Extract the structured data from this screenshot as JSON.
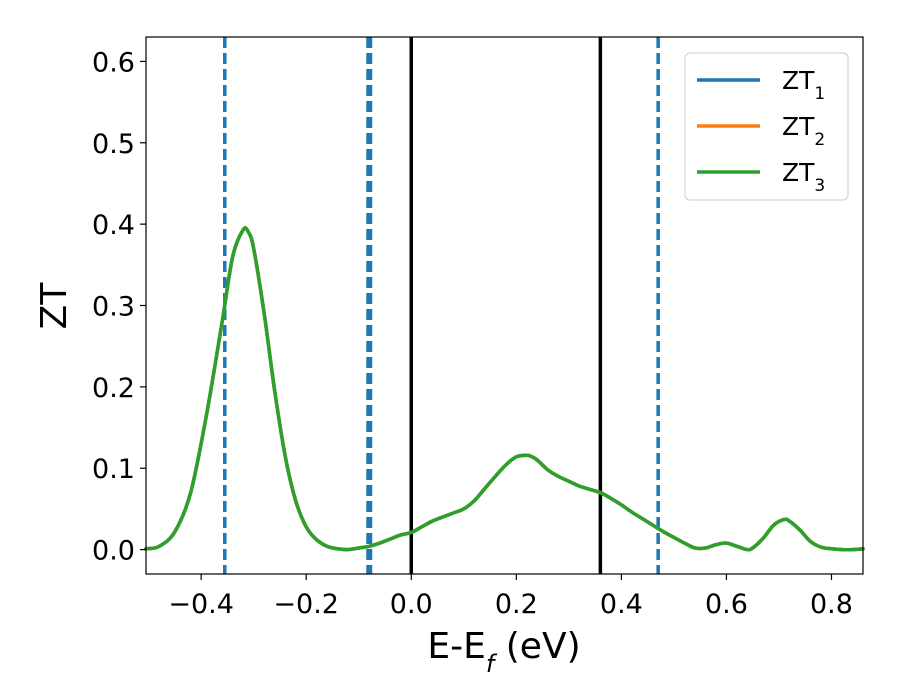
{
  "chart_data": {
    "type": "line",
    "xlabel": "E-E",
    "xlabel_sub": "f",
    "xlabel_unit": " (eV)",
    "ylabel": "ZT",
    "xlim": [
      -0.505,
      0.86
    ],
    "ylim": [
      -0.03,
      0.63
    ],
    "xticks": [
      -0.4,
      -0.2,
      0.0,
      0.2,
      0.4,
      0.6,
      0.8
    ],
    "xtick_labels": [
      "−0.4",
      "−0.2",
      "0.0",
      "0.2",
      "0.4",
      "0.6",
      "0.8"
    ],
    "yticks": [
      0.0,
      0.1,
      0.2,
      0.3,
      0.4,
      0.5,
      0.6
    ],
    "ytick_labels": [
      "0.0",
      "0.1",
      "0.2",
      "0.3",
      "0.4",
      "0.5",
      "0.6"
    ],
    "grid": false,
    "legend": {
      "placement": "top-right"
    },
    "x": [
      -0.505,
      -0.48,
      -0.45,
      -0.42,
      -0.39,
      -0.36,
      -0.34,
      -0.32,
      -0.31,
      -0.3,
      -0.28,
      -0.26,
      -0.24,
      -0.22,
      -0.2,
      -0.18,
      -0.16,
      -0.14,
      -0.12,
      -0.1,
      -0.08,
      -0.06,
      -0.04,
      -0.02,
      0.0,
      0.02,
      0.04,
      0.06,
      0.08,
      0.1,
      0.12,
      0.14,
      0.16,
      0.18,
      0.2,
      0.22,
      0.23,
      0.24,
      0.26,
      0.28,
      0.3,
      0.32,
      0.34,
      0.36,
      0.38,
      0.4,
      0.42,
      0.44,
      0.46,
      0.48,
      0.5,
      0.52,
      0.54,
      0.56,
      0.58,
      0.6,
      0.62,
      0.64,
      0.65,
      0.67,
      0.69,
      0.71,
      0.72,
      0.74,
      0.76,
      0.78,
      0.8,
      0.82,
      0.84,
      0.86
    ],
    "series": [
      {
        "name": "ZT",
        "sub": "1",
        "color": "#1f77b4",
        "values": [
          0.001,
          0.004,
          0.022,
          0.07,
          0.165,
          0.28,
          0.36,
          0.393,
          0.39,
          0.37,
          0.29,
          0.195,
          0.115,
          0.06,
          0.028,
          0.012,
          0.004,
          0.001,
          0.0,
          0.002,
          0.004,
          0.008,
          0.013,
          0.018,
          0.021,
          0.028,
          0.035,
          0.04,
          0.045,
          0.05,
          0.06,
          0.075,
          0.09,
          0.104,
          0.114,
          0.116,
          0.114,
          0.11,
          0.098,
          0.09,
          0.084,
          0.078,
          0.074,
          0.07,
          0.063,
          0.055,
          0.046,
          0.038,
          0.03,
          0.022,
          0.015,
          0.008,
          0.002,
          0.002,
          0.006,
          0.008,
          0.004,
          0.0,
          0.002,
          0.014,
          0.03,
          0.037,
          0.035,
          0.024,
          0.01,
          0.003,
          0.001,
          0.0,
          0.0,
          0.001
        ]
      },
      {
        "name": "ZT",
        "sub": "2",
        "color": "#ff7f0e",
        "values": [
          0.001,
          0.004,
          0.022,
          0.07,
          0.165,
          0.28,
          0.36,
          0.393,
          0.39,
          0.37,
          0.29,
          0.195,
          0.115,
          0.06,
          0.028,
          0.012,
          0.004,
          0.001,
          0.0,
          0.002,
          0.004,
          0.008,
          0.013,
          0.018,
          0.021,
          0.028,
          0.035,
          0.04,
          0.045,
          0.05,
          0.06,
          0.075,
          0.09,
          0.104,
          0.114,
          0.116,
          0.114,
          0.11,
          0.098,
          0.09,
          0.084,
          0.078,
          0.074,
          0.07,
          0.063,
          0.055,
          0.046,
          0.038,
          0.03,
          0.022,
          0.015,
          0.008,
          0.002,
          0.002,
          0.006,
          0.008,
          0.004,
          0.0,
          0.002,
          0.014,
          0.03,
          0.037,
          0.035,
          0.024,
          0.01,
          0.003,
          0.001,
          0.0,
          0.0,
          0.001
        ]
      },
      {
        "name": "ZT",
        "sub": "3",
        "color": "#2ca02c",
        "values": [
          0.001,
          0.004,
          0.022,
          0.07,
          0.165,
          0.28,
          0.36,
          0.393,
          0.39,
          0.37,
          0.29,
          0.195,
          0.115,
          0.06,
          0.028,
          0.012,
          0.004,
          0.001,
          0.0,
          0.002,
          0.004,
          0.008,
          0.013,
          0.018,
          0.021,
          0.028,
          0.035,
          0.04,
          0.045,
          0.05,
          0.06,
          0.075,
          0.09,
          0.104,
          0.114,
          0.116,
          0.114,
          0.11,
          0.098,
          0.09,
          0.084,
          0.078,
          0.074,
          0.07,
          0.063,
          0.055,
          0.046,
          0.038,
          0.03,
          0.022,
          0.015,
          0.008,
          0.002,
          0.002,
          0.006,
          0.008,
          0.004,
          0.0,
          0.002,
          0.014,
          0.03,
          0.037,
          0.035,
          0.024,
          0.01,
          0.003,
          0.001,
          0.0,
          0.0,
          0.001
        ]
      }
    ],
    "vlines": [
      {
        "x": -0.355,
        "style": "dashed",
        "color": "#1f77b4"
      },
      {
        "x": -0.08,
        "style": "dashed-thick",
        "color": "#1f77b4"
      },
      {
        "x": 0.0,
        "style": "solid",
        "color": "#000000"
      },
      {
        "x": 0.36,
        "style": "solid",
        "color": "#000000"
      },
      {
        "x": 0.47,
        "style": "dashed",
        "color": "#1f77b4"
      }
    ]
  }
}
